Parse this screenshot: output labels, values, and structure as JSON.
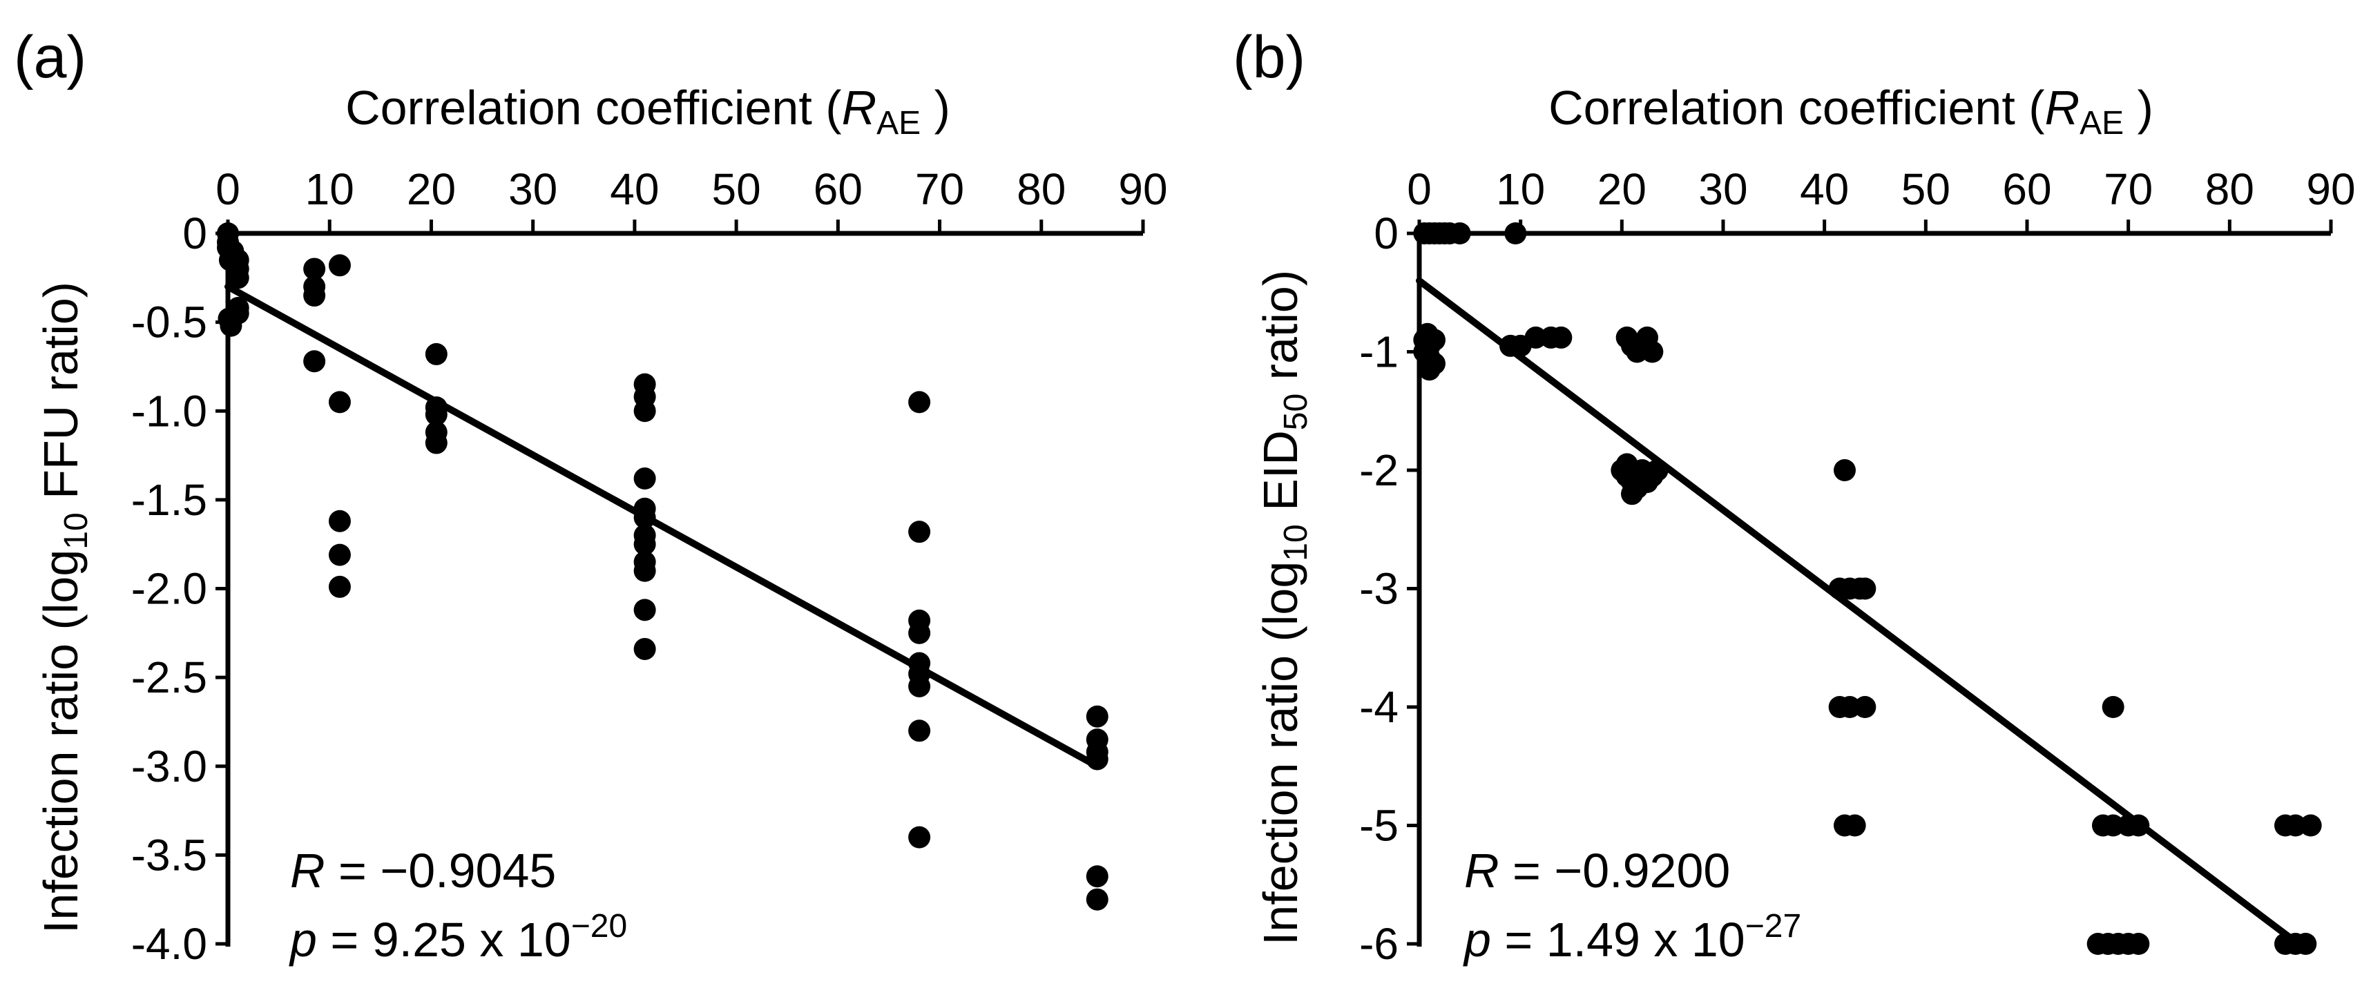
{
  "chart_data": [
    {
      "type": "scatter",
      "panel": "(a)",
      "xlabel": {
        "main": "Correlation coefficient (",
        "italic": "R",
        "sub": "AE",
        "close": " )"
      },
      "ylabel": {
        "pre": "Infection ratio (log",
        "sub": "10",
        "post": " FFU ratio)"
      },
      "xlim": [
        0,
        90
      ],
      "ylim": [
        -4.0,
        0
      ],
      "xticks": [
        0,
        10,
        20,
        30,
        40,
        50,
        60,
        70,
        80,
        90
      ],
      "xtick_labels": [
        "0",
        "10",
        "20",
        "30",
        "40",
        "50",
        "60",
        "70",
        "80",
        "90"
      ],
      "yticks": [
        0,
        -0.5,
        -1.0,
        -1.5,
        -2.0,
        -2.5,
        -3.0,
        -3.5,
        -4.0
      ],
      "ytick_labels": [
        "0",
        "-0.5",
        "-1.0",
        "-1.5",
        "-2.0",
        "-2.5",
        "-3.0",
        "-3.5",
        "-4.0"
      ],
      "x_axis_position": "top",
      "grid": false,
      "points": [
        [
          0,
          0
        ],
        [
          0,
          -0.05
        ],
        [
          0,
          -0.08
        ],
        [
          0.3,
          -0.12
        ],
        [
          0.5,
          -0.1
        ],
        [
          0.2,
          -0.15
        ],
        [
          0.1,
          -0.48
        ],
        [
          0.3,
          -0.52
        ],
        [
          1,
          -0.15
        ],
        [
          1,
          -0.2
        ],
        [
          1,
          -0.25
        ],
        [
          1,
          -0.42
        ],
        [
          1,
          -0.45
        ],
        [
          8.5,
          -0.2
        ],
        [
          8.5,
          -0.3
        ],
        [
          8.5,
          -0.35
        ],
        [
          8.5,
          -0.72
        ],
        [
          11,
          -0.18
        ],
        [
          11,
          -0.95
        ],
        [
          11,
          -1.62
        ],
        [
          11,
          -1.81
        ],
        [
          11,
          -1.99
        ],
        [
          20.5,
          -0.68
        ],
        [
          20.5,
          -0.98
        ],
        [
          20.5,
          -1.02
        ],
        [
          20.5,
          -1.12
        ],
        [
          20.5,
          -1.18
        ],
        [
          41,
          -0.85
        ],
        [
          41,
          -0.92
        ],
        [
          41,
          -1.0
        ],
        [
          41,
          -1.38
        ],
        [
          41,
          -1.55
        ],
        [
          41,
          -1.6
        ],
        [
          41,
          -1.7
        ],
        [
          41,
          -1.75
        ],
        [
          41,
          -1.85
        ],
        [
          41,
          -1.9
        ],
        [
          41,
          -2.12
        ],
        [
          41,
          -2.34
        ],
        [
          68,
          -0.95
        ],
        [
          68,
          -1.68
        ],
        [
          68,
          -2.18
        ],
        [
          68,
          -2.25
        ],
        [
          68,
          -2.42
        ],
        [
          68,
          -2.48
        ],
        [
          68,
          -2.55
        ],
        [
          68,
          -2.8
        ],
        [
          68,
          -3.4
        ],
        [
          85.5,
          -2.72
        ],
        [
          85.5,
          -2.85
        ],
        [
          85.5,
          -2.92
        ],
        [
          85.5,
          -2.96
        ],
        [
          85.5,
          -3.62
        ],
        [
          85.5,
          -3.75
        ]
      ],
      "fit_line": {
        "x": [
          0,
          85.5
        ],
        "y": [
          -0.3,
          -3.0
        ]
      },
      "annotation": {
        "r_symbol": "R",
        "r_text": " = −0.9045",
        "p_symbol": "p",
        "p_text": " = 9.25 x 10",
        "p_exp": "−20"
      }
    },
    {
      "type": "scatter",
      "panel": "(b)",
      "xlabel": {
        "main": "Correlation coefficient (",
        "italic": "R",
        "sub": "AE",
        "close": " )"
      },
      "ylabel": {
        "pre": "Infection ratio (log",
        "sub": "10",
        "mid": " EID",
        "sub2": "50",
        "post": " ratio)"
      },
      "xlim": [
        0,
        90
      ],
      "ylim": [
        -6,
        0
      ],
      "xticks": [
        0,
        10,
        20,
        30,
        40,
        50,
        60,
        70,
        80,
        90
      ],
      "xtick_labels": [
        "0",
        "10",
        "20",
        "30",
        "40",
        "50",
        "60",
        "70",
        "80",
        "90"
      ],
      "yticks": [
        0,
        -1,
        -2,
        -3,
        -4,
        -5,
        -6
      ],
      "ytick_labels": [
        "0",
        "-1",
        "-2",
        "-3",
        "-4",
        "-5",
        "-6"
      ],
      "x_axis_position": "top",
      "grid": false,
      "points": [
        [
          0.5,
          0
        ],
        [
          1,
          0
        ],
        [
          1.5,
          0
        ],
        [
          2,
          0
        ],
        [
          2.5,
          0
        ],
        [
          3,
          0
        ],
        [
          4,
          0
        ],
        [
          9.5,
          0
        ],
        [
          0.5,
          -0.9
        ],
        [
          1,
          -0.95
        ],
        [
          1.5,
          -0.9
        ],
        [
          0.5,
          -1.0
        ],
        [
          1,
          -1.05
        ],
        [
          1.5,
          -1.1
        ],
        [
          1,
          -1.15
        ],
        [
          0.8,
          -0.85
        ],
        [
          9,
          -0.95
        ],
        [
          10,
          -0.95
        ],
        [
          11.5,
          -0.88
        ],
        [
          13,
          -0.88
        ],
        [
          14,
          -0.88
        ],
        [
          20.5,
          -0.88
        ],
        [
          21,
          -0.95
        ],
        [
          21.5,
          -1.0
        ],
        [
          22.5,
          -0.88
        ],
        [
          23,
          -1.0
        ],
        [
          20,
          -2.0
        ],
        [
          20.5,
          -2.05
        ],
        [
          21,
          -2.1
        ],
        [
          21.5,
          -2.15
        ],
        [
          22,
          -2.0
        ],
        [
          22.5,
          -2.1
        ],
        [
          23,
          -2.05
        ],
        [
          23.5,
          -2.0
        ],
        [
          21,
          -2.2
        ],
        [
          20.5,
          -1.95
        ],
        [
          42,
          -2.0
        ],
        [
          41.5,
          -3.0
        ],
        [
          42.5,
          -3.0
        ],
        [
          43.5,
          -3.0
        ],
        [
          44,
          -3.0
        ],
        [
          41.5,
          -4.0
        ],
        [
          42.5,
          -4.0
        ],
        [
          44,
          -4.0
        ],
        [
          42,
          -5.0
        ],
        [
          43,
          -5.0
        ],
        [
          68.5,
          -4.0
        ],
        [
          67.5,
          -5.0
        ],
        [
          68.5,
          -5.0
        ],
        [
          70,
          -5.0
        ],
        [
          71,
          -5.0
        ],
        [
          67,
          -6.0
        ],
        [
          68,
          -6.0
        ],
        [
          69,
          -6.0
        ],
        [
          70,
          -6.0
        ],
        [
          71,
          -6.0
        ],
        [
          85.5,
          -5.0
        ],
        [
          86.5,
          -5.0
        ],
        [
          88,
          -5.0
        ],
        [
          85.5,
          -6.0
        ],
        [
          86.5,
          -6.0
        ],
        [
          87.5,
          -6.0
        ]
      ],
      "fit_line": {
        "x": [
          0,
          86
        ],
        "y": [
          -0.4,
          -5.95
        ]
      },
      "annotation": {
        "r_symbol": "R",
        "r_text": " = −0.9200",
        "p_symbol": "p",
        "p_text": " = 1.49 x 10",
        "p_exp": "−27"
      }
    }
  ]
}
